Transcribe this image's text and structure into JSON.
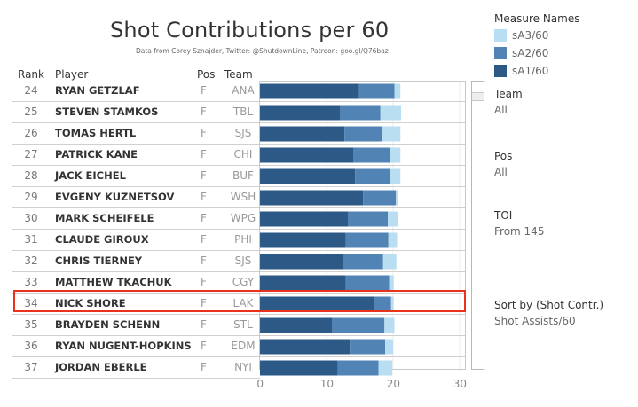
{
  "header": {
    "title": "Shot Contributions per 60",
    "subtitle": "Data from Corey Sznajder, Twitter: @ShutdownLine, Patreon: goo.gl/Q76baz"
  },
  "columns": {
    "rank": "Rank",
    "player": "Player",
    "pos": "Pos",
    "team": "Team"
  },
  "rows": [
    {
      "rank": "24",
      "player": "RYAN GETZLAF",
      "pos": "F",
      "team": "ANA"
    },
    {
      "rank": "25",
      "player": "STEVEN STAMKOS",
      "pos": "F",
      "team": "TBL"
    },
    {
      "rank": "26",
      "player": "TOMAS HERTL",
      "pos": "F",
      "team": "SJS"
    },
    {
      "rank": "27",
      "player": "PATRICK KANE",
      "pos": "F",
      "team": "CHI"
    },
    {
      "rank": "28",
      "player": "JACK EICHEL",
      "pos": "F",
      "team": "BUF"
    },
    {
      "rank": "29",
      "player": "EVGENY KUZNETSOV",
      "pos": "F",
      "team": "WSH"
    },
    {
      "rank": "30",
      "player": "MARK SCHEIFELE",
      "pos": "F",
      "team": "WPG"
    },
    {
      "rank": "31",
      "player": "CLAUDE GIROUX",
      "pos": "F",
      "team": "PHI"
    },
    {
      "rank": "32",
      "player": "CHRIS TIERNEY",
      "pos": "F",
      "team": "SJS"
    },
    {
      "rank": "33",
      "player": "MATTHEW TKACHUK",
      "pos": "F",
      "team": "CGY"
    },
    {
      "rank": "34",
      "player": "NICK SHORE",
      "pos": "F",
      "team": "LAK"
    },
    {
      "rank": "35",
      "player": "BRAYDEN SCHENN",
      "pos": "F",
      "team": "STL"
    },
    {
      "rank": "36",
      "player": "RYAN NUGENT-HOPKINS",
      "pos": "F",
      "team": "EDM"
    },
    {
      "rank": "37",
      "player": "JORDAN EBERLE",
      "pos": "F",
      "team": "NYI"
    }
  ],
  "highlighted_player": "NICK SHORE",
  "chart_data": {
    "type": "bar",
    "orientation": "horizontal",
    "stacked": true,
    "title": "Shot Contributions per 60",
    "xlabel": "",
    "ylabel": "",
    "xlim": [
      0,
      31
    ],
    "x_ticks": [
      "0",
      "10",
      "20",
      "30"
    ],
    "x_tick_values": [
      0,
      10,
      20,
      30
    ],
    "grid": true,
    "legend_position": "right",
    "categories": [
      "RYAN GETZLAF",
      "STEVEN STAMKOS",
      "TOMAS HERTL",
      "PATRICK KANE",
      "JACK EICHEL",
      "EVGENY KUZNETSOV",
      "MARK SCHEIFELE",
      "CLAUDE GIROUX",
      "CHRIS TIERNEY",
      "MATTHEW TKACHUK",
      "NICK SHORE",
      "BRAYDEN SCHENN",
      "RYAN NUGENT-HOPKINS",
      "JORDAN EBERLE"
    ],
    "series": [
      {
        "name": "sA1/60",
        "color": "#2c5985",
        "values": [
          14.9,
          12.0,
          12.7,
          14.0,
          14.3,
          15.5,
          13.2,
          12.9,
          12.5,
          12.9,
          17.2,
          10.8,
          13.5,
          11.7
        ]
      },
      {
        "name": "sA2/60",
        "color": "#5183b4",
        "values": [
          5.3,
          6.1,
          5.7,
          5.6,
          5.2,
          4.9,
          6.0,
          6.4,
          6.0,
          6.5,
          2.5,
          7.9,
          5.3,
          6.1
        ]
      },
      {
        "name": "sA3/60",
        "color": "#b9ddf1",
        "values": [
          0.9,
          3.1,
          2.7,
          1.5,
          1.6,
          0.4,
          1.5,
          1.3,
          2.0,
          0.7,
          0.4,
          1.5,
          1.2,
          2.1
        ]
      }
    ]
  },
  "legend": {
    "title": "Measure Names",
    "items": [
      {
        "label": "sA3/60",
        "color": "#b9ddf1"
      },
      {
        "label": "sA2/60",
        "color": "#5183b4"
      },
      {
        "label": "sA1/60",
        "color": "#2c5985"
      }
    ]
  },
  "filters": {
    "team": {
      "title": "Team",
      "value": "All"
    },
    "pos": {
      "title": "Pos",
      "value": "All"
    },
    "toi": {
      "title": "TOI",
      "value": "From 145"
    },
    "sort": {
      "title": "Sort by (Shot Contr.)",
      "value": "Shot Assists/60"
    }
  },
  "colors": {
    "highlight": "#e8321d"
  }
}
